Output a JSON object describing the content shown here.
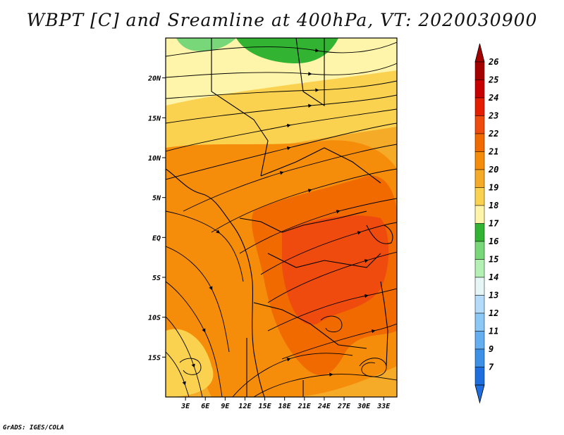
{
  "title": "WBPT [C] and Sreamline at 400hPa, VT: 2020030900",
  "credit": "GrADS: IGES/COLA",
  "map": {
    "lon_range": [
      0,
      35
    ],
    "lat_range": [
      -20,
      25
    ],
    "lat_ticks": [
      {
        "value": 20,
        "label": "20N"
      },
      {
        "value": 15,
        "label": "15N"
      },
      {
        "value": 10,
        "label": "10N"
      },
      {
        "value": 5,
        "label": "5N"
      },
      {
        "value": 0,
        "label": "EQ"
      },
      {
        "value": -5,
        "label": "5S"
      },
      {
        "value": -10,
        "label": "10S"
      },
      {
        "value": -15,
        "label": "15S"
      }
    ],
    "lon_ticks": [
      {
        "value": 3,
        "label": "3E"
      },
      {
        "value": 6,
        "label": "6E"
      },
      {
        "value": 9,
        "label": "9E"
      },
      {
        "value": 12,
        "label": "12E"
      },
      {
        "value": 15,
        "label": "15E"
      },
      {
        "value": 18,
        "label": "18E"
      },
      {
        "value": 21,
        "label": "21E"
      },
      {
        "value": 24,
        "label": "24E"
      },
      {
        "value": 27,
        "label": "27E"
      },
      {
        "value": 30,
        "label": "30E"
      },
      {
        "value": 33,
        "label": "33E"
      }
    ]
  },
  "colorbar": {
    "levels": [
      {
        "label": "26",
        "color": "#a50000"
      },
      {
        "label": "25",
        "color": "#c80000"
      },
      {
        "label": "24",
        "color": "#e61e00"
      },
      {
        "label": "23",
        "color": "#f04b0f"
      },
      {
        "label": "22",
        "color": "#f06a00"
      },
      {
        "label": "21",
        "color": "#f58c0a"
      },
      {
        "label": "20",
        "color": "#f5aa28"
      },
      {
        "label": "19",
        "color": "#fad250"
      },
      {
        "label": "18",
        "color": "#fff5aa"
      },
      {
        "label": "17",
        "color": "#32b432"
      },
      {
        "label": "16",
        "color": "#78d778"
      },
      {
        "label": "15",
        "color": "#b4f0b4"
      },
      {
        "label": "14",
        "color": "#e6f5f5"
      },
      {
        "label": "13",
        "color": "#b4dcfa"
      },
      {
        "label": "12",
        "color": "#8cc8f5"
      },
      {
        "label": "11",
        "color": "#64aff0"
      },
      {
        "label": "9",
        "color": "#3c91e6"
      },
      {
        "label": "7",
        "color": "#1e6ee0"
      }
    ],
    "over_color": "#a50000",
    "under_color": "#1e6ee0"
  },
  "fill_colors": {
    "green": "#32b432",
    "light_green": "#78d778",
    "pale_yellow": "#fff5aa",
    "yellow": "#fad250",
    "light_orange": "#f5aa28",
    "orange": "#f58c0a",
    "dark_orange": "#f06a00",
    "red_orange": "#f04b0f"
  }
}
